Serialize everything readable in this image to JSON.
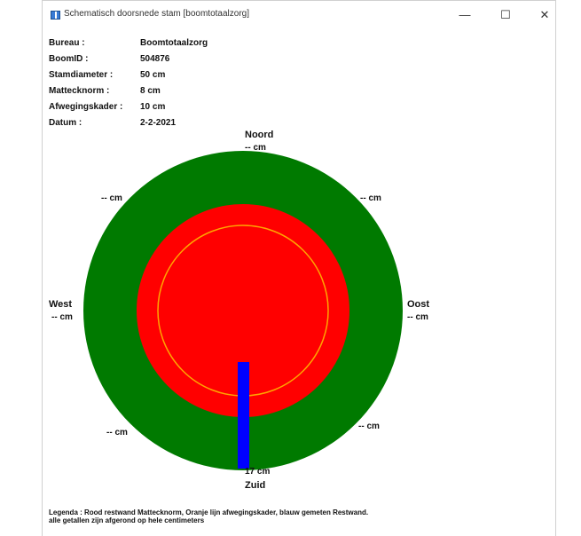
{
  "window": {
    "title": "Schematisch doorsnede stam [boomtotaalzorg]",
    "controls": {
      "minimize": "—",
      "maximize": "☐",
      "close": "✕"
    }
  },
  "info": [
    {
      "label": "Bureau :",
      "value": "Boomtotaalzorg"
    },
    {
      "label": "BoomID :",
      "value": "504876"
    },
    {
      "label": "Stamdiameter :",
      "value": "50 cm"
    },
    {
      "label": "Mattecknorm :",
      "value": "8 cm"
    },
    {
      "label": "Afwegingskader :",
      "value": "10 cm"
    },
    {
      "label": "Datum :",
      "value": "2-2-2021"
    }
  ],
  "directions": {
    "north": {
      "name": "Noord",
      "value": "-- cm"
    },
    "northeast": {
      "value": "-- cm"
    },
    "east": {
      "name": "Oost",
      "value": "-- cm"
    },
    "southeast": {
      "value": "-- cm"
    },
    "south": {
      "name": "Zuid",
      "value": "17 cm"
    },
    "southwest": {
      "value": "-- cm"
    },
    "west": {
      "name": "West",
      "value": "-- cm"
    },
    "northwest": {
      "value": "-- cm"
    }
  },
  "colors": {
    "trunk": "#007a00",
    "restwand": "#ff0000",
    "afwegingskader": "#ffa500",
    "measured": "#0000ff"
  },
  "legend": {
    "line1": "Legenda : Rood restwand Mattecknorm, Oranje lijn afwegingskader, blauw gemeten Restwand.",
    "line2": "alle getallen zijn afgerond op hele centimeters"
  }
}
